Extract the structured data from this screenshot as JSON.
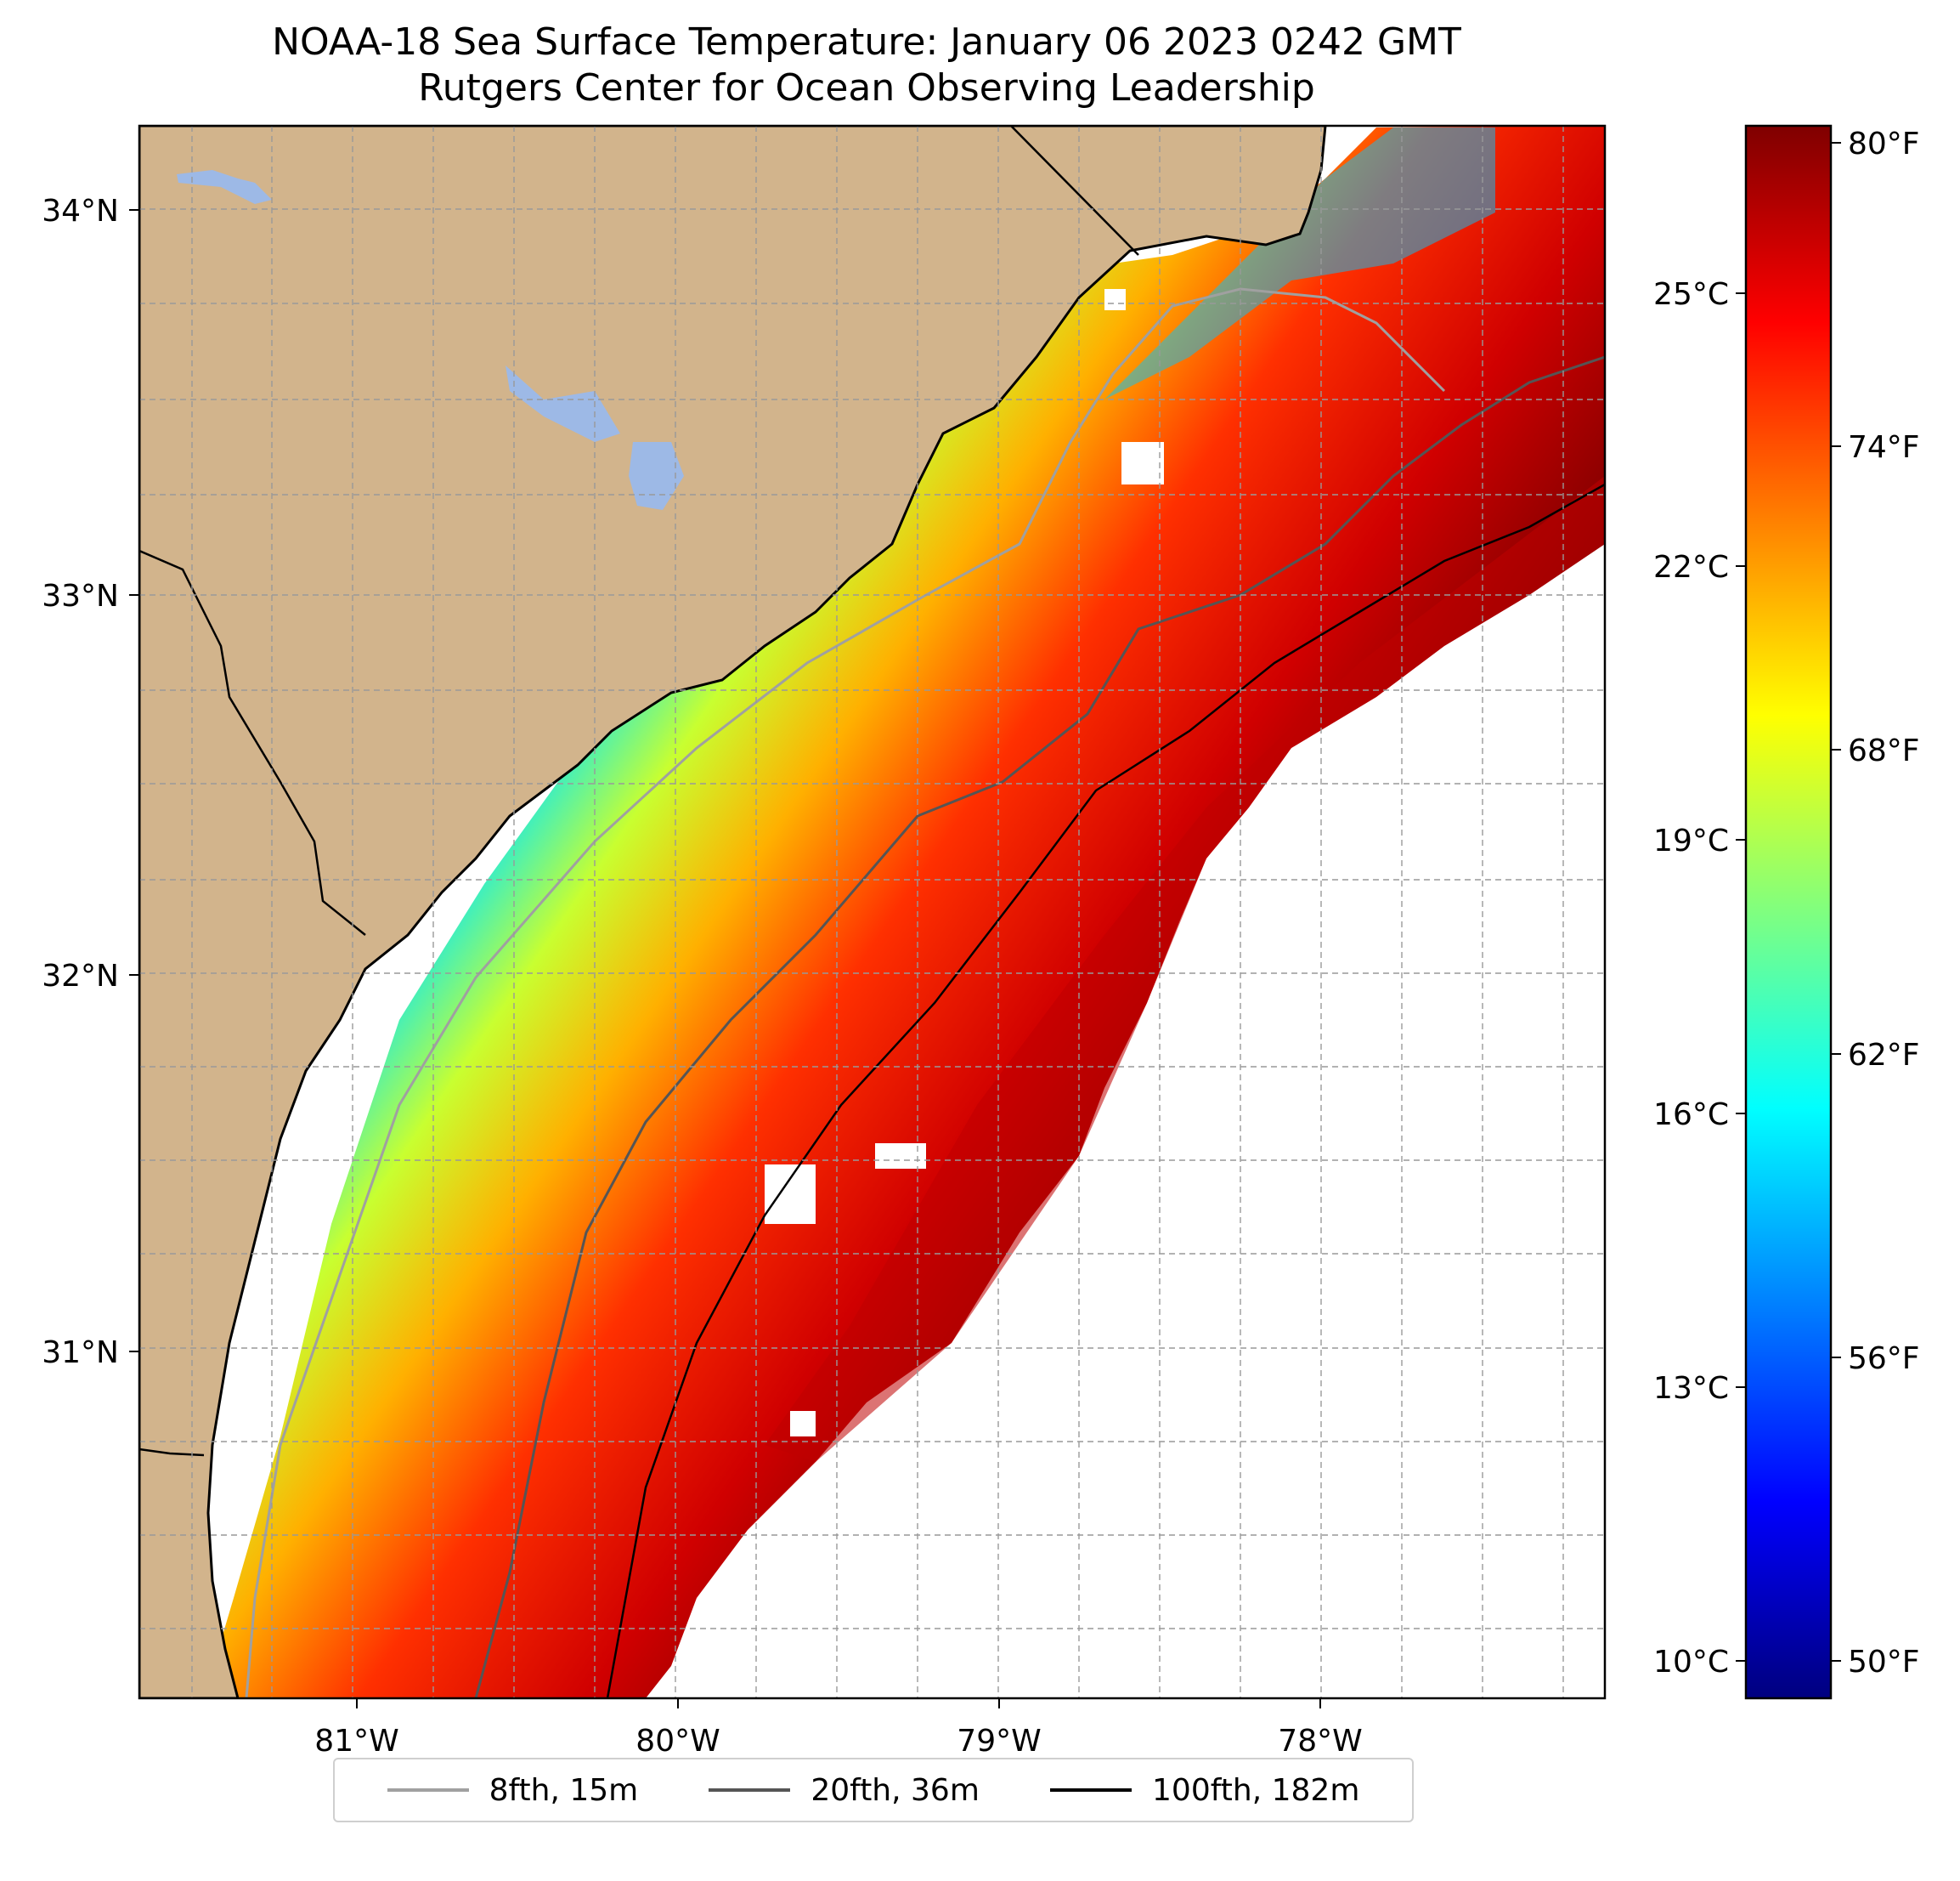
{
  "title": {
    "line1": "NOAA-18 Sea Surface Temperature: January 06 2023 0242 GMT",
    "line2": "Rutgers Center for Ocean Observing Leadership"
  },
  "map": {
    "lon_labels": [
      "81°W",
      "80°W",
      "79°W",
      "78°W"
    ],
    "lat_labels": [
      "34°N",
      "33°N",
      "32°N",
      "31°N"
    ],
    "land_color": "#d2b48c",
    "lake_color": "#9db9e6"
  },
  "colorbar": {
    "celsius_labels": [
      "25°C",
      "22°C",
      "19°C",
      "16°C",
      "13°C",
      "10°C"
    ],
    "fahrenheit_labels": [
      "80°F",
      "74°F",
      "68°F",
      "62°F",
      "56°F",
      "50°F"
    ],
    "colormap": "jet",
    "range_celsius": [
      9.5,
      27
    ]
  },
  "legend": {
    "items": [
      {
        "label": "8fth, 15m",
        "color": "#a0a0a0"
      },
      {
        "label": "20fth, 36m",
        "color": "#555555"
      },
      {
        "label": "100fth, 182m",
        "color": "#000000"
      }
    ]
  }
}
